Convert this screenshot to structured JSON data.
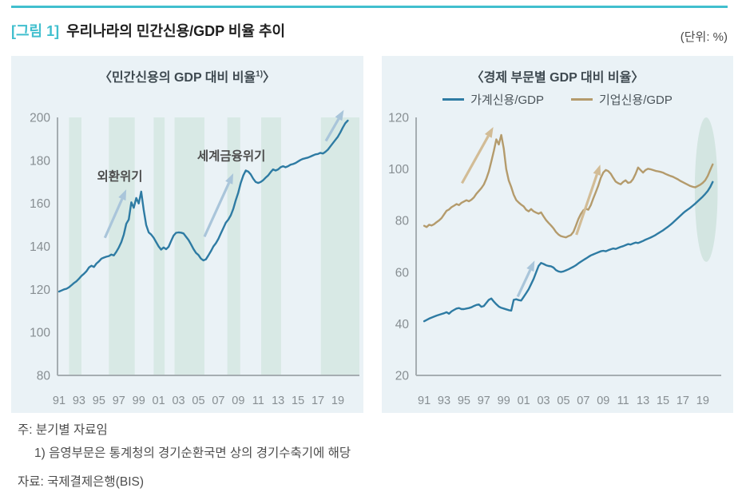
{
  "header": {
    "tag": "[그림 1]",
    "title": "우리나라의 민간신용/GDP 비율 추이",
    "unit": "(단위: %)"
  },
  "colors": {
    "accent_teal": "#41bfce",
    "panel_bg": "#eaf2f6",
    "band": "#d8e9e5",
    "highlight": "#d3e5e1",
    "axis": "#a5adb1",
    "tick_text": "#878e92",
    "annotation_text": "#4d4d4d",
    "arrow_blue": "#a9c5da",
    "arrow_tan": "#d2bc96"
  },
  "footnotes": {
    "note1": "주: 분기별 자료임",
    "note2": "1) 음영부문은 통계청의 경기순환국면 상의 경기수축기에 해당",
    "source": "자료: 국제결제은행(BIS)"
  },
  "chart_data": [
    {
      "type": "line",
      "title_prefix": "〈민간신용의 GDP 대비 비율",
      "title_sup": "1)",
      "title_suffix": "〉",
      "x_start": 1991.0,
      "x_step": 0.25,
      "xlim": [
        1990.84,
        2021.17
      ],
      "ylim": [
        80,
        200
      ],
      "yticks": [
        80,
        100,
        120,
        140,
        160,
        180,
        200
      ],
      "xtick_years": [
        1991,
        1993,
        1995,
        1997,
        1999,
        2001,
        2003,
        2005,
        2007,
        2009,
        2011,
        2013,
        2015,
        2017,
        2019
      ],
      "xtick_labels": [
        "91",
        "93",
        "95",
        "97",
        "99",
        "01",
        "03",
        "05",
        "07",
        "09",
        "11",
        "13",
        "15",
        "17",
        "19"
      ],
      "shaded_bands": [
        [
          1992.0,
          1993.25
        ],
        [
          1996.0,
          1998.6
        ],
        [
          2000.5,
          2001.6
        ],
        [
          2002.6,
          2005.6
        ],
        [
          2007.9,
          2009.2
        ],
        [
          2011.3,
          2013.3
        ],
        [
          2017.3,
          2021.17
        ]
      ],
      "series": [
        {
          "name": "민간신용/GDP",
          "color": "#2e7ba3",
          "values": [
            119,
            119.5,
            120,
            120.3,
            121,
            122,
            123,
            123.8,
            125,
            126.3,
            127.3,
            128.5,
            130.2,
            131,
            130.4,
            132,
            133,
            134.3,
            134.8,
            135.2,
            135.5,
            136.2,
            135.8,
            137.5,
            139.5,
            142,
            145.5,
            150.5,
            152.5,
            160.5,
            158,
            162.5,
            160,
            165.5,
            157,
            150,
            146.5,
            145.5,
            144,
            142,
            140,
            138.5,
            139.5,
            138.7,
            139.8,
            142.5,
            145,
            146.3,
            146.5,
            146.4,
            146,
            144.5,
            143,
            141,
            138.8,
            137,
            136,
            134.3,
            133.5,
            134,
            135.8,
            137.8,
            140,
            141.5,
            143.5,
            146,
            148.5,
            151,
            152.5,
            154.5,
            157.5,
            161.5,
            165,
            169.5,
            173,
            175.3,
            174.8,
            173.5,
            171.5,
            170,
            169.5,
            170,
            170.8,
            172,
            173,
            174.5,
            175.8,
            175.3,
            175.8,
            176.8,
            177.3,
            176.8,
            177.3,
            178,
            178.3,
            178.8,
            179.5,
            180.2,
            180.7,
            181,
            181.3,
            181.8,
            182.3,
            182.8,
            183,
            183.5,
            183.2,
            184,
            185,
            186.5,
            188,
            189.5,
            191,
            193,
            195.3,
            197.3,
            198.5
          ]
        }
      ],
      "annotations": [
        {
          "text": "외환위기",
          "x": 1997.1,
          "y": 172.5
        },
        {
          "text": "세계금융위기",
          "x": 2008.3,
          "y": 182
        }
      ],
      "arrows": [
        {
          "from": [
            1995.6,
            144
          ],
          "to": [
            1997.75,
            166.5
          ],
          "color": "blue"
        },
        {
          "from": [
            2005.6,
            144.5
          ],
          "to": [
            2008.5,
            174
          ],
          "color": "blue"
        },
        {
          "from": [
            2017.8,
            189
          ],
          "to": [
            2019.6,
            203.5
          ],
          "color": "blue"
        }
      ]
    },
    {
      "type": "line",
      "title_prefix": "〈경제 부문별 GDP 대비 비율",
      "title_sup": "",
      "title_suffix": "〉",
      "x_start": 1991.0,
      "x_step": 0.25,
      "xlim": [
        1990.19,
        2020.86
      ],
      "ylim": [
        20,
        120
      ],
      "yticks": [
        20,
        40,
        60,
        80,
        100,
        120
      ],
      "xtick_years": [
        1991,
        1993,
        1995,
        1997,
        1999,
        2001,
        2003,
        2005,
        2007,
        2009,
        2011,
        2013,
        2015,
        2017,
        2019
      ],
      "xtick_labels": [
        "91",
        "93",
        "95",
        "97",
        "99",
        "01",
        "03",
        "05",
        "07",
        "09",
        "11",
        "13",
        "15",
        "17",
        "19"
      ],
      "series": [
        {
          "name": "가계신용/GDP",
          "color": "#2e7ba3",
          "values": [
            41,
            41.5,
            42,
            42.4,
            42.8,
            43.2,
            43.5,
            43.8,
            44.1,
            44.5,
            43.9,
            44.8,
            45.4,
            45.9,
            46.1,
            45.7,
            45.7,
            45.9,
            46.1,
            46.4,
            46.9,
            47.3,
            47.5,
            46.6,
            46.9,
            48.1,
            49.3,
            49.8,
            48.6,
            47.6,
            46.7,
            46.2,
            45.9,
            45.6,
            45.3,
            45.1,
            49.3,
            49.5,
            49.2,
            49,
            50.4,
            51.9,
            53.4,
            55.4,
            57.4,
            59.9,
            62.4,
            63.6,
            63.2,
            62.7,
            62.4,
            62.3,
            61.8,
            60.8,
            60.3,
            60.1,
            60.3,
            60.7,
            61.1,
            61.6,
            62.1,
            62.7,
            63.4,
            64.1,
            64.7,
            65.3,
            65.9,
            66.5,
            66.9,
            67.3,
            67.7,
            68.1,
            68.3,
            68.1,
            68.5,
            68.9,
            69.2,
            69,
            69.4,
            69.8,
            70.1,
            70.5,
            70.9,
            70.7,
            71.1,
            71.5,
            71.3,
            71.7,
            72.1,
            72.6,
            73,
            73.4,
            73.9,
            74.4,
            75,
            75.6,
            76.2,
            76.9,
            77.6,
            78.4,
            79.2,
            80.1,
            81,
            81.9,
            82.8,
            83.6,
            84.3,
            85,
            85.8,
            86.6,
            87.5,
            88.4,
            89.3,
            90.3,
            91.5,
            93,
            95
          ]
        },
        {
          "name": "기업신용/GDP",
          "color": "#b49b6c",
          "values": [
            78,
            77.5,
            78.4,
            78.1,
            78.6,
            79.4,
            80.1,
            81,
            82.4,
            83.8,
            84.3,
            85.2,
            85.8,
            86.4,
            86,
            86.9,
            87.4,
            87.9,
            87.5,
            88.1,
            89,
            90.4,
            91.5,
            92.6,
            94,
            96.2,
            99,
            103,
            107,
            111.5,
            109.5,
            113.2,
            108,
            100,
            95.5,
            93,
            90,
            88,
            87,
            86.2,
            85.5,
            84.2,
            83.6,
            84.5,
            83.6,
            83.1,
            82.7,
            83.2,
            81.6,
            80.2,
            79.1,
            78.1,
            77,
            75.6,
            74.6,
            74,
            73.7,
            73.5,
            74,
            74.4,
            75.6,
            78,
            80.6,
            82.6,
            84,
            84.6,
            84.2,
            86,
            88.6,
            91,
            93.6,
            96.6,
            98.6,
            99.6,
            99.2,
            98.2,
            96.6,
            95.1,
            94.5,
            94.1,
            95,
            95.6,
            94.6,
            94.9,
            96.1,
            98.1,
            100.6,
            99.6,
            98.6,
            99.6,
            100.1,
            99.9,
            99.6,
            99.3,
            99.1,
            98.9,
            98.6,
            98.1,
            97.7,
            97.3,
            97,
            96.5,
            96,
            95.4,
            94.9,
            94.4,
            93.9,
            93.4,
            93.1,
            92.9,
            93.4,
            93.9,
            94.6,
            95.6,
            97.3,
            99.6,
            101.8
          ]
        }
      ],
      "annotations": [],
      "arrows": [
        {
          "from": [
            1994.8,
            94.5
          ],
          "to": [
            1997.95,
            116.3
          ],
          "color": "tan"
        },
        {
          "from": [
            2000.4,
            50.5
          ],
          "to": [
            2002.1,
            64.5
          ],
          "color": "blue"
        },
        {
          "from": [
            2006.3,
            74.5
          ],
          "to": [
            2008.7,
            101.7
          ],
          "color": "tan"
        }
      ],
      "highlight_ellipse": {
        "cx": 2019.35,
        "cy": 92,
        "rx": 1.15,
        "ry": 28
      }
    }
  ]
}
